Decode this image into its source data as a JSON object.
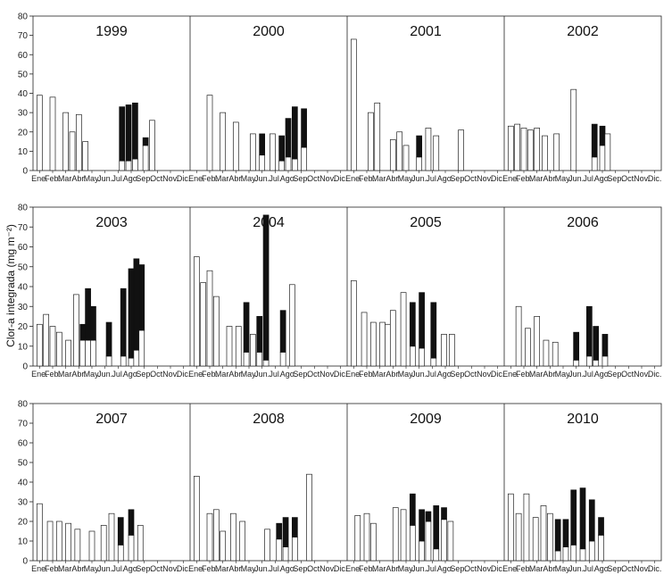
{
  "chart_data": {
    "type": "bar",
    "ylabel": "Clor-a integrada (mg m⁻²)",
    "months": [
      "Ene.",
      "Feb.",
      "Mar.",
      "Abr.",
      "May.",
      "Jun.",
      "Jul.",
      "Ago.",
      "Sep.",
      "Oct.",
      "Nov.",
      "Dic."
    ],
    "panels": [
      {
        "ylim": [
          0,
          80
        ],
        "yticks": [
          0,
          10,
          20,
          30,
          40,
          50,
          60,
          70,
          80
        ],
        "years": [
          {
            "year": "1999",
            "bars": [
              {
                "m": 0,
                "v": 39
              },
              {
                "m": 1,
                "v": 38
              },
              {
                "m": 2,
                "v": 30
              },
              {
                "m": 2.5,
                "v": 20
              },
              {
                "m": 3,
                "v": 29
              },
              {
                "m": 3.5,
                "v": 15
              },
              {
                "m": 6.3,
                "v": 33,
                "u": 5
              },
              {
                "m": 6.8,
                "v": 34,
                "u": 5
              },
              {
                "m": 7.3,
                "v": 35,
                "u": 6
              },
              {
                "m": 8.1,
                "v": 17,
                "u": 13
              },
              {
                "m": 8.6,
                "v": 26
              }
            ]
          },
          {
            "year": "2000",
            "bars": [
              {
                "m": 1,
                "v": 39
              },
              {
                "m": 2,
                "v": 30
              },
              {
                "m": 3,
                "v": 25
              },
              {
                "m": 4.3,
                "v": 19
              },
              {
                "m": 5,
                "v": 19,
                "u": 8
              },
              {
                "m": 5.8,
                "v": 19
              },
              {
                "m": 6.5,
                "v": 18,
                "u": 5
              },
              {
                "m": 7,
                "v": 27,
                "u": 7
              },
              {
                "m": 7.5,
                "v": 33,
                "u": 6
              },
              {
                "m": 8.2,
                "v": 32,
                "u": 12
              }
            ]
          },
          {
            "year": "2001",
            "bars": [
              {
                "m": 0,
                "v": 68
              },
              {
                "m": 1.3,
                "v": 30
              },
              {
                "m": 1.8,
                "v": 35
              },
              {
                "m": 3,
                "v": 16
              },
              {
                "m": 3.5,
                "v": 20
              },
              {
                "m": 4,
                "v": 13
              },
              {
                "m": 5,
                "v": 18,
                "u": 7
              },
              {
                "m": 5.7,
                "v": 22
              },
              {
                "m": 6.3,
                "v": 18
              },
              {
                "m": 8.2,
                "v": 21
              }
            ]
          },
          {
            "year": "2002",
            "bars": [
              {
                "m": 0,
                "v": 23
              },
              {
                "m": 0.5,
                "v": 24
              },
              {
                "m": 1,
                "v": 22
              },
              {
                "m": 1.5,
                "v": 21
              },
              {
                "m": 2,
                "v": 22
              },
              {
                "m": 2.6,
                "v": 18
              },
              {
                "m": 3.5,
                "v": 19
              },
              {
                "m": 4.8,
                "v": 42
              },
              {
                "m": 6.4,
                "v": 24,
                "u": 7
              },
              {
                "m": 7,
                "v": 23,
                "u": 13
              },
              {
                "m": 7.4,
                "v": 19
              }
            ]
          }
        ]
      },
      {
        "ylim": [
          0,
          80
        ],
        "yticks": [
          0,
          10,
          20,
          30,
          40,
          50,
          60,
          70,
          80
        ],
        "years": [
          {
            "year": "2003",
            "bars": [
              {
                "m": 0,
                "v": 21
              },
              {
                "m": 0.5,
                "v": 26
              },
              {
                "m": 1,
                "v": 20
              },
              {
                "m": 1.5,
                "v": 17
              },
              {
                "m": 2.2,
                "v": 13
              },
              {
                "m": 2.8,
                "v": 36
              },
              {
                "m": 3.3,
                "v": 21,
                "u": 13
              },
              {
                "m": 3.7,
                "v": 39,
                "u": 13
              },
              {
                "m": 4.1,
                "v": 30,
                "u": 13
              },
              {
                "m": 5.3,
                "v": 22,
                "u": 5
              },
              {
                "m": 6.4,
                "v": 39,
                "u": 5
              },
              {
                "m": 7,
                "v": 49,
                "u": 4
              },
              {
                "m": 7.4,
                "v": 54,
                "u": 8
              },
              {
                "m": 7.8,
                "v": 51,
                "u": 18
              }
            ]
          },
          {
            "year": "2004",
            "bars": [
              {
                "m": 0,
                "v": 55
              },
              {
                "m": 0.5,
                "v": 42
              },
              {
                "m": 1,
                "v": 48
              },
              {
                "m": 1.5,
                "v": 35
              },
              {
                "m": 2.5,
                "v": 20
              },
              {
                "m": 3.2,
                "v": 20
              },
              {
                "m": 3.8,
                "v": 32,
                "u": 7
              },
              {
                "m": 4.3,
                "v": 16
              },
              {
                "m": 4.8,
                "v": 25,
                "u": 7
              },
              {
                "m": 5.3,
                "v": 76,
                "u": 3
              },
              {
                "m": 6.6,
                "v": 28,
                "u": 7
              },
              {
                "m": 7.3,
                "v": 41
              }
            ]
          },
          {
            "year": "2005",
            "bars": [
              {
                "m": 0,
                "v": 43
              },
              {
                "m": 0.8,
                "v": 27
              },
              {
                "m": 1.5,
                "v": 22
              },
              {
                "m": 2.2,
                "v": 22
              },
              {
                "m": 2.6,
                "v": 21
              },
              {
                "m": 3,
                "v": 28
              },
              {
                "m": 3.8,
                "v": 37
              },
              {
                "m": 4.5,
                "v": 32,
                "u": 10
              },
              {
                "m": 5.2,
                "v": 37,
                "u": 9
              },
              {
                "m": 6.1,
                "v": 32,
                "u": 4
              },
              {
                "m": 6.9,
                "v": 16
              },
              {
                "m": 7.5,
                "v": 16
              }
            ]
          },
          {
            "year": "2006",
            "bars": [
              {
                "m": 0.6,
                "v": 30
              },
              {
                "m": 1.3,
                "v": 19
              },
              {
                "m": 2,
                "v": 25
              },
              {
                "m": 2.7,
                "v": 13
              },
              {
                "m": 3.4,
                "v": 12
              },
              {
                "m": 5,
                "v": 17,
                "u": 3
              },
              {
                "m": 6,
                "v": 30,
                "u": 5
              },
              {
                "m": 6.5,
                "v": 20,
                "u": 3
              },
              {
                "m": 7.2,
                "v": 16,
                "u": 5
              }
            ]
          }
        ]
      },
      {
        "ylim": [
          0,
          80
        ],
        "yticks": [
          0,
          10,
          20,
          30,
          40,
          50,
          60,
          70,
          80
        ],
        "years": [
          {
            "year": "2007",
            "bars": [
              {
                "m": 0,
                "v": 29
              },
              {
                "m": 0.8,
                "v": 20
              },
              {
                "m": 1.5,
                "v": 20
              },
              {
                "m": 2.2,
                "v": 19
              },
              {
                "m": 2.9,
                "v": 16
              },
              {
                "m": 4,
                "v": 15
              },
              {
                "m": 4.9,
                "v": 18
              },
              {
                "m": 5.5,
                "v": 24
              },
              {
                "m": 6.2,
                "v": 22,
                "u": 8
              },
              {
                "m": 7,
                "v": 26,
                "u": 13
              },
              {
                "m": 7.7,
                "v": 18
              }
            ]
          },
          {
            "year": "2008",
            "bars": [
              {
                "m": 0,
                "v": 43
              },
              {
                "m": 1,
                "v": 24
              },
              {
                "m": 1.5,
                "v": 26
              },
              {
                "m": 2,
                "v": 15
              },
              {
                "m": 2.8,
                "v": 24
              },
              {
                "m": 3.5,
                "v": 20
              },
              {
                "m": 5.4,
                "v": 16
              },
              {
                "m": 6.3,
                "v": 19,
                "u": 11
              },
              {
                "m": 6.8,
                "v": 22,
                "u": 7
              },
              {
                "m": 7.5,
                "v": 22,
                "u": 12
              },
              {
                "m": 8.6,
                "v": 44
              }
            ]
          },
          {
            "year": "2009",
            "bars": [
              {
                "m": 0.3,
                "v": 23
              },
              {
                "m": 1,
                "v": 24
              },
              {
                "m": 1.5,
                "v": 19
              },
              {
                "m": 3.2,
                "v": 27
              },
              {
                "m": 3.8,
                "v": 26
              },
              {
                "m": 4.5,
                "v": 34,
                "u": 18
              },
              {
                "m": 5.2,
                "v": 26,
                "u": 10
              },
              {
                "m": 5.7,
                "v": 25,
                "u": 20
              },
              {
                "m": 6.3,
                "v": 28,
                "u": 6
              },
              {
                "m": 6.9,
                "v": 27,
                "u": 21
              },
              {
                "m": 7.4,
                "v": 20
              }
            ]
          },
          {
            "year": "2010",
            "bars": [
              {
                "m": 0,
                "v": 34
              },
              {
                "m": 0.6,
                "v": 24
              },
              {
                "m": 1.2,
                "v": 34
              },
              {
                "m": 1.9,
                "v": 22
              },
              {
                "m": 2.5,
                "v": 28
              },
              {
                "m": 3,
                "v": 24
              },
              {
                "m": 3.6,
                "v": 21,
                "u": 5
              },
              {
                "m": 4.2,
                "v": 21,
                "u": 7
              },
              {
                "m": 4.8,
                "v": 36,
                "u": 8
              },
              {
                "m": 5.5,
                "v": 37,
                "u": 6
              },
              {
                "m": 6.2,
                "v": 31,
                "u": 10
              },
              {
                "m": 6.9,
                "v": 22,
                "u": 13
              }
            ]
          }
        ]
      }
    ]
  }
}
